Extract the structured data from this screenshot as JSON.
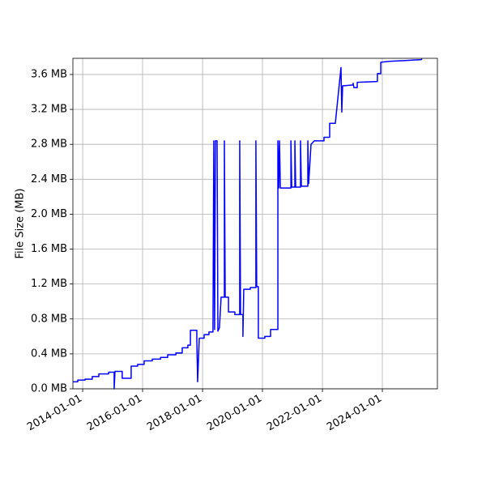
{
  "chart_data": {
    "type": "line",
    "ylabel": "File Size (MB)",
    "color": "#0000ff",
    "grid": true,
    "x": [
      "2013-09-04",
      "2013-11-02",
      "2013-11-02",
      "2014-01-30",
      "2014-01-30",
      "2014-04-28",
      "2014-04-28",
      "2014-07-17",
      "2014-07-17",
      "2014-11-13",
      "2014-11-13",
      "2015-01-20",
      "2015-01-20",
      "2015-01-30",
      "2015-04-28",
      "2015-04-28",
      "2015-08-15",
      "2015-08-15",
      "2015-11-02",
      "2015-11-02",
      "2016-01-20",
      "2016-01-20",
      "2016-04-28",
      "2016-04-28",
      "2016-08-06",
      "2016-08-06",
      "2016-11-02",
      "2016-11-02",
      "2017-02-10",
      "2017-02-10",
      "2017-04-28",
      "2017-04-28",
      "2017-07-06",
      "2017-07-06",
      "2017-08-06",
      "2017-08-06",
      "2017-10-23",
      "2017-10-23",
      "2017-11-02",
      "2017-11-22",
      "2018-01-20",
      "2018-01-20",
      "2018-03-20",
      "2018-03-20",
      "2018-05-08",
      "2018-05-08",
      "2018-05-18",
      "2018-05-28",
      "2018-06-07",
      "2018-06-27",
      "2018-07-07",
      "2018-07-26",
      "2018-08-15",
      "2018-09-24",
      "2018-09-24",
      "2018-10-04",
      "2018-11-13",
      "2018-11-13",
      "2019-01-30",
      "2019-01-30",
      "2019-03-30",
      "2019-03-30",
      "2019-04-09",
      "2019-05-08",
      "2019-05-08",
      "2019-05-18",
      "2019-08-06",
      "2019-08-06",
      "2019-10-13",
      "2019-10-13",
      "2019-10-23",
      "2019-11-12",
      "2019-11-12",
      "2020-01-30",
      "2020-01-30",
      "2020-04-09",
      "2020-04-09",
      "2020-07-07",
      "2020-07-07",
      "2020-07-17",
      "2020-07-27",
      "2020-08-06",
      "2020-12-13",
      "2020-12-13",
      "2020-12-23",
      "2021-01-30",
      "2021-01-30",
      "2021-02-09",
      "2021-04-09",
      "2021-04-09",
      "2021-04-19",
      "2021-07-07",
      "2021-07-07",
      "2021-07-17",
      "2021-08-15",
      "2021-09-24",
      "2022-01-20",
      "2022-01-20",
      "2022-03-30",
      "2022-03-30",
      "2022-06-07",
      "2022-08-15",
      "2022-08-25",
      "2022-09-04",
      "2023-01-10",
      "2023-01-10",
      "2023-01-20",
      "2023-03-01",
      "2023-03-01",
      "2023-11-02",
      "2023-11-02",
      "2023-12-13",
      "2023-12-13",
      "2024-03-20",
      "2024-10-04",
      "2025-04-19",
      "2025-04-28"
    ],
    "values": [
      0.08,
      0.08,
      0.1,
      0.1,
      0.11,
      0.11,
      0.14,
      0.14,
      0.17,
      0.17,
      0.19,
      0.19,
      0,
      0.2,
      0.2,
      0.12,
      0.12,
      0.26,
      0.26,
      0.28,
      0.28,
      0.32,
      0.32,
      0.34,
      0.34,
      0.36,
      0.36,
      0.39,
      0.39,
      0.41,
      0.41,
      0.47,
      0.47,
      0.5,
      0.5,
      0.67,
      0.67,
      0.57,
      0.08,
      0.58,
      0.58,
      0.62,
      0.62,
      0.65,
      0.65,
      0.67,
      2.84,
      0.68,
      2.84,
      2.84,
      0.66,
      0.7,
      1.05,
      1.05,
      2.84,
      1.05,
      1.05,
      0.88,
      0.88,
      0.85,
      0.85,
      2.84,
      0.85,
      0.85,
      0.6,
      1.14,
      1.14,
      1.16,
      1.16,
      2.84,
      1.17,
      1.17,
      0.58,
      0.58,
      0.6,
      0.6,
      0.68,
      0.68,
      2.84,
      2.3,
      2.84,
      2.3,
      2.3,
      2.84,
      2.31,
      2.31,
      2.84,
      2.31,
      2.31,
      2.84,
      2.32,
      2.32,
      2.84,
      2.35,
      2.8,
      2.84,
      2.84,
      2.88,
      2.88,
      3.04,
      3.04,
      3.68,
      3.17,
      3.47,
      3.48,
      3.5,
      3.45,
      3.45,
      3.51,
      3.52,
      3.61,
      3.61,
      3.74,
      3.75,
      3.76,
      3.77,
      3.78
    ],
    "xlim": [
      "2013-09-04",
      "2025-11-02"
    ],
    "xticks": [
      "2014-01-01",
      "2016-01-01",
      "2018-01-01",
      "2020-01-01",
      "2022-01-01",
      "2024-01-01"
    ],
    "ylim": [
      0,
      3.785
    ],
    "yticks": [
      {
        "value": 0,
        "label": "0.0 MB"
      },
      {
        "value": 0.4,
        "label": "0.4 MB"
      },
      {
        "value": 0.8,
        "label": "0.8 MB"
      },
      {
        "value": 1.2,
        "label": "1.2 MB"
      },
      {
        "value": 1.6,
        "label": "1.6 MB"
      },
      {
        "value": 2.0,
        "label": "2.0 MB"
      },
      {
        "value": 2.4,
        "label": "2.4 MB"
      },
      {
        "value": 2.8,
        "label": "2.8 MB"
      },
      {
        "value": 3.2,
        "label": "3.2 MB"
      },
      {
        "value": 3.6,
        "label": "3.6 MB"
      }
    ]
  }
}
